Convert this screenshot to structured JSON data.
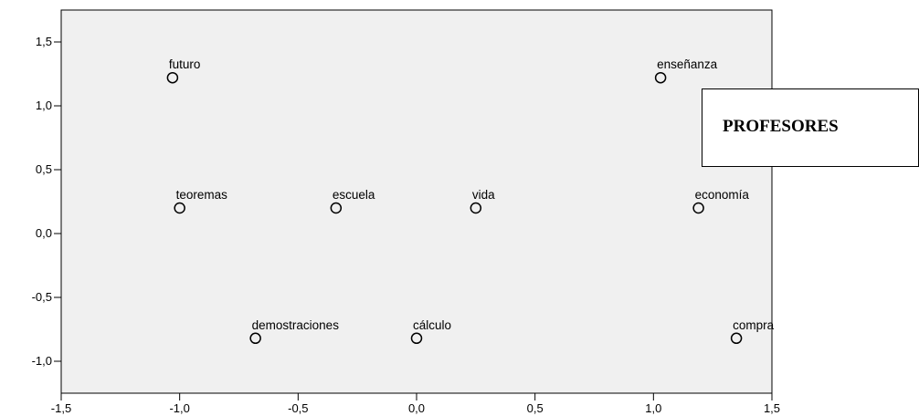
{
  "chart_data": {
    "type": "scatter",
    "title": "",
    "xlabel": "",
    "ylabel": "",
    "xlim": [
      -1.5,
      1.5
    ],
    "ylim": [
      -1.25,
      1.75
    ],
    "grid": false,
    "x_ticks": [
      -1.5,
      -1.0,
      -0.5,
      0.0,
      0.5,
      1.0,
      1.5
    ],
    "x_tick_labels": [
      "-1,5",
      "-1,0",
      "-0,5",
      "0,0",
      "0,5",
      "1,0",
      "1,5"
    ],
    "y_ticks": [
      1.5,
      1.0,
      0.5,
      0.0,
      -0.5,
      -1.0
    ],
    "y_tick_labels": [
      "1,5",
      "1,0",
      "0,5",
      "0,0",
      "-0,5",
      "-1,0"
    ],
    "points": [
      {
        "label": "futuro",
        "x": -1.03,
        "y": 1.22
      },
      {
        "label": "enseñanza",
        "x": 1.03,
        "y": 1.22
      },
      {
        "label": "teoremas",
        "x": -1.0,
        "y": 0.2
      },
      {
        "label": "escuela",
        "x": -0.34,
        "y": 0.2
      },
      {
        "label": "vida",
        "x": 0.25,
        "y": 0.2
      },
      {
        "label": "economía",
        "x": 1.19,
        "y": 0.2
      },
      {
        "label": "demostraciones",
        "x": -0.68,
        "y": -0.82
      },
      {
        "label": "cálculo",
        "x": 0.0,
        "y": -0.82
      },
      {
        "label": "compra",
        "x": 1.35,
        "y": -0.82
      }
    ],
    "plot_background": "#f0f0f0",
    "marker_color": "#000000"
  },
  "legend": {
    "text": "PROFESORES"
  }
}
